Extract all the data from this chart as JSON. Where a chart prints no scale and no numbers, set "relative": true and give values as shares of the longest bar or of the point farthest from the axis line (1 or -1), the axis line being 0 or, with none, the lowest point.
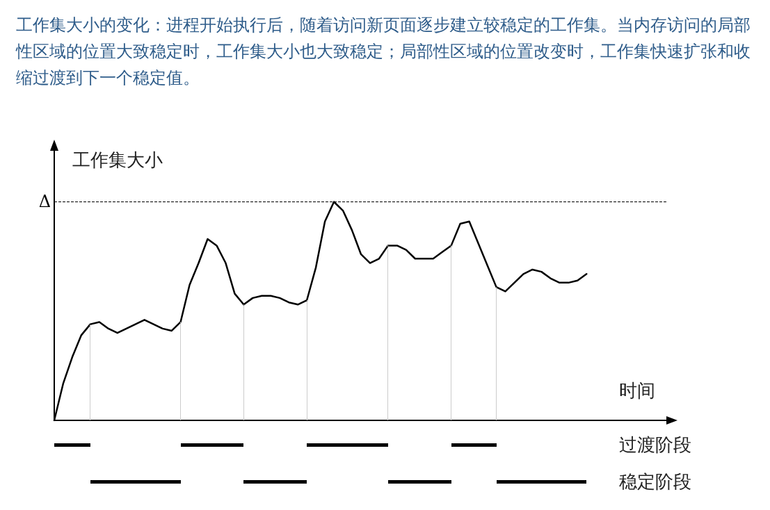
{
  "chart_data": {
    "type": "line",
    "relative": true,
    "title": "工作集大小的变化：进程开始执行后，随着访问新页面逐步建立较稳定的工作集。当内存访问的局部性区域的位置大致稳定时，工作集大小也大致稳定；局部性区域的位置改变时，工作集快速扩张和收缩过渡到下一个稳定值。",
    "ylabel": "工作集大小",
    "xlabel": "时间",
    "grid": false,
    "marker": "none",
    "line_style": "solid",
    "categories": [
      null,
      null,
      null,
      null,
      null,
      null,
      null,
      null,
      null,
      null,
      null,
      null,
      null,
      null,
      null,
      null,
      null,
      null,
      null,
      null,
      null,
      null,
      null,
      null,
      null,
      null,
      null,
      null,
      null,
      null,
      null,
      null,
      null,
      null,
      null,
      null,
      null,
      null,
      null,
      null,
      null,
      null,
      null,
      null,
      null,
      null,
      null,
      null,
      null,
      null,
      null,
      null,
      null,
      null,
      null,
      null,
      null,
      null,
      null,
      null
    ],
    "series": [
      {
        "color": "#000000",
        "values": [
          0,
          0.17,
          0.29,
          0.39,
          0.44,
          0.45,
          0.42,
          0.4,
          0.42,
          0.44,
          0.46,
          0.44,
          0.42,
          0.41,
          0.45,
          0.62,
          0.72,
          0.83,
          0.8,
          0.72,
          0.58,
          0.53,
          0.56,
          0.57,
          0.57,
          0.56,
          0.54,
          0.53,
          0.55,
          0.7,
          0.91,
          1,
          0.96,
          0.87,
          0.76,
          0.72,
          0.74,
          0.8,
          0.8,
          0.78,
          0.74,
          0.74,
          0.74,
          0.77,
          0.8,
          0.9,
          0.91,
          0.81,
          0.71,
          0.61,
          0.59,
          0.63,
          0.67,
          0.69,
          0.68,
          0.65,
          0.63,
          0.63,
          0.64,
          0.67
        ]
      }
    ],
    "ref_lines": [
      {
        "axis": "y",
        "value": 1,
        "label": "Δ",
        "color": "#000000",
        "line_style": "dashed"
      }
    ],
    "annotations": [
      "过渡阶段",
      "稳定阶段"
    ]
  }
}
